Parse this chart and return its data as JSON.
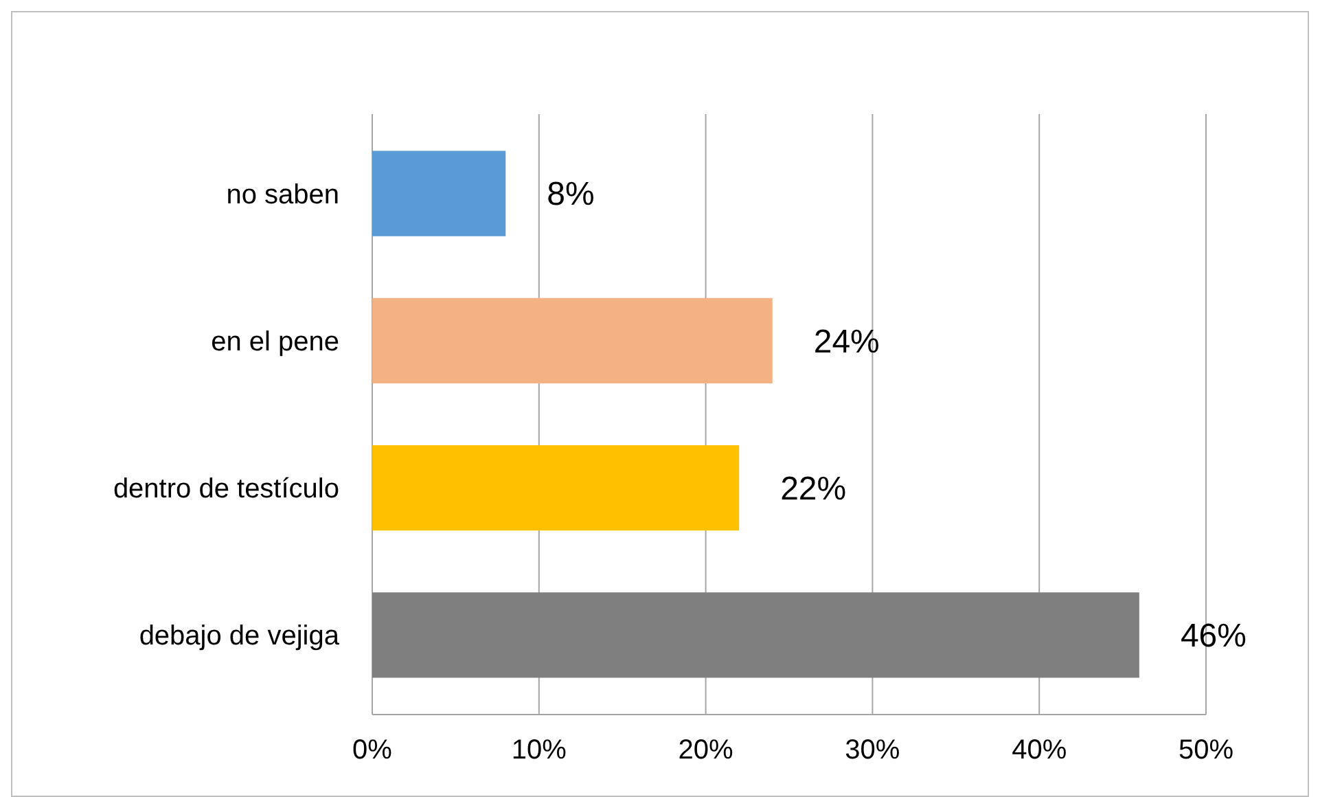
{
  "chart_data": {
    "type": "bar",
    "orientation": "horizontal",
    "categories": [
      "no saben",
      "en el pene",
      "dentro de testículo",
      "debajo de vejiga"
    ],
    "values": [
      8,
      24,
      22,
      46
    ],
    "colors": [
      "#5b9bd5",
      "#f4b183",
      "#ffc000",
      "#7f7f7f"
    ],
    "value_labels": [
      "8%",
      "24%",
      "22%",
      "46%"
    ],
    "xlim": [
      0,
      50
    ],
    "xticks": [
      {
        "value": 0,
        "label": "0%"
      },
      {
        "value": 10,
        "label": "10%"
      },
      {
        "value": 20,
        "label": "20%"
      },
      {
        "value": 30,
        "label": "30%"
      },
      {
        "value": 40,
        "label": "40%"
      },
      {
        "value": 50,
        "label": "50%"
      }
    ],
    "grid": "x"
  }
}
